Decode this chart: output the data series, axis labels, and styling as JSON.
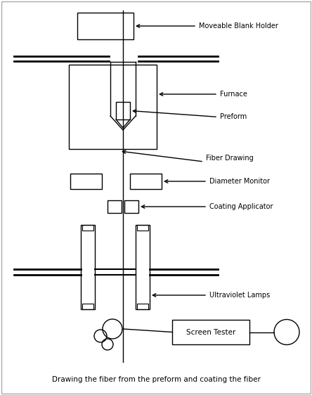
{
  "bg_color": "#ffffff",
  "border_color": "#aaaaaa",
  "line_color": "#000000",
  "text_color": "#000000",
  "title_text": "Drawing the fiber from the preform and coating the fiber",
  "labels": {
    "moveable_blank_holder": "Moveable Blank Holder",
    "furnace": "Furnace",
    "preform": "Preform",
    "fiber_drawing": "Fiber Drawing",
    "diameter_monitor": "Diameter Monitor",
    "coating_applicator": "Coating Applicator",
    "ultraviolet_lamps": "Ultraviolet Lamps",
    "screen_tester": "Screen Tester"
  },
  "figsize": [
    4.44,
    5.62
  ],
  "dpi": 100
}
